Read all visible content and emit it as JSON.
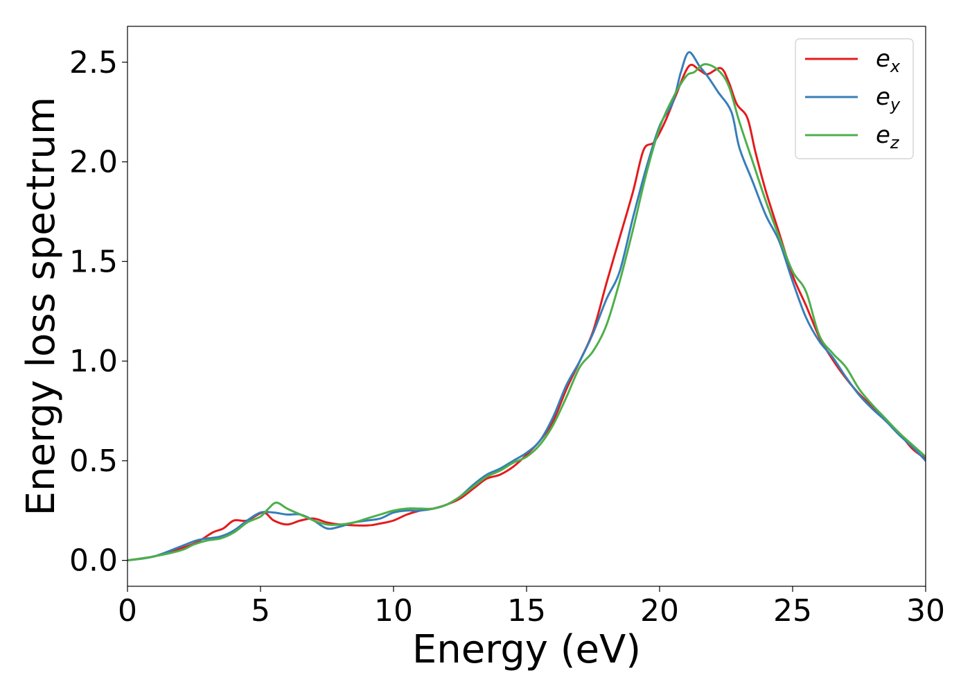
{
  "chart_data": {
    "type": "line",
    "xlabel": "Energy (eV)",
    "ylabel": "Energy loss spectrum",
    "xlim": [
      0,
      30
    ],
    "ylim": [
      -0.13,
      2.68
    ],
    "xticks": [
      "0",
      "5",
      "10",
      "15",
      "20",
      "25",
      "30"
    ],
    "yticks": [
      "0.0",
      "0.5",
      "1.0",
      "1.5",
      "2.0",
      "2.5"
    ],
    "grid": false,
    "legend_position": "top-right",
    "series": [
      {
        "name": "e_x",
        "legend_base": "e",
        "legend_sub": "x",
        "color": "#e41a1c",
        "points": [
          [
            0,
            0
          ],
          [
            1,
            0.02
          ],
          [
            2,
            0.06
          ],
          [
            2.6,
            0.09
          ],
          [
            3.2,
            0.14
          ],
          [
            3.6,
            0.16
          ],
          [
            4,
            0.2
          ],
          [
            4.5,
            0.2
          ],
          [
            5.1,
            0.24
          ],
          [
            5.5,
            0.2
          ],
          [
            6,
            0.18
          ],
          [
            6.5,
            0.2
          ],
          [
            7,
            0.21
          ],
          [
            7.5,
            0.19
          ],
          [
            8,
            0.18
          ],
          [
            9,
            0.175
          ],
          [
            9.5,
            0.185
          ],
          [
            10,
            0.2
          ],
          [
            10.5,
            0.23
          ],
          [
            11,
            0.25
          ],
          [
            11.5,
            0.26
          ],
          [
            12,
            0.28
          ],
          [
            12.5,
            0.31
          ],
          [
            13,
            0.36
          ],
          [
            13.5,
            0.41
          ],
          [
            14,
            0.43
          ],
          [
            14.5,
            0.47
          ],
          [
            15,
            0.53
          ],
          [
            15.5,
            0.6
          ],
          [
            16,
            0.7
          ],
          [
            16.5,
            0.86
          ],
          [
            17,
            1.0
          ],
          [
            17.5,
            1.15
          ],
          [
            18,
            1.39
          ],
          [
            18.5,
            1.62
          ],
          [
            19,
            1.85
          ],
          [
            19.4,
            2.06
          ],
          [
            19.8,
            2.1
          ],
          [
            20.2,
            2.2
          ],
          [
            20.6,
            2.33
          ],
          [
            21.1,
            2.48
          ],
          [
            21.5,
            2.46
          ],
          [
            21.8,
            2.44
          ],
          [
            22.3,
            2.47
          ],
          [
            22.6,
            2.4
          ],
          [
            22.9,
            2.29
          ],
          [
            23.3,
            2.22
          ],
          [
            23.6,
            2.05
          ],
          [
            24,
            1.85
          ],
          [
            24.5,
            1.64
          ],
          [
            25,
            1.43
          ],
          [
            25.5,
            1.28
          ],
          [
            26,
            1.12
          ],
          [
            26.3,
            1.05
          ],
          [
            26.8,
            0.95
          ],
          [
            27.4,
            0.85
          ],
          [
            28,
            0.77
          ],
          [
            28.5,
            0.7
          ],
          [
            29,
            0.64
          ],
          [
            29.5,
            0.56
          ],
          [
            30,
            0.51
          ]
        ]
      },
      {
        "name": "e_y",
        "legend_base": "e",
        "legend_sub": "y",
        "color": "#377eb8",
        "points": [
          [
            0,
            0
          ],
          [
            1,
            0.02
          ],
          [
            2,
            0.07
          ],
          [
            2.6,
            0.1
          ],
          [
            3,
            0.11
          ],
          [
            3.5,
            0.12
          ],
          [
            4,
            0.15
          ],
          [
            4.5,
            0.2
          ],
          [
            5,
            0.24
          ],
          [
            5.5,
            0.24
          ],
          [
            6,
            0.23
          ],
          [
            6.5,
            0.23
          ],
          [
            7,
            0.2
          ],
          [
            7.5,
            0.16
          ],
          [
            8,
            0.17
          ],
          [
            8.5,
            0.19
          ],
          [
            9,
            0.2
          ],
          [
            9.5,
            0.21
          ],
          [
            10,
            0.24
          ],
          [
            10.5,
            0.25
          ],
          [
            11,
            0.25
          ],
          [
            11.5,
            0.26
          ],
          [
            12,
            0.28
          ],
          [
            12.5,
            0.32
          ],
          [
            13,
            0.38
          ],
          [
            13.5,
            0.43
          ],
          [
            14,
            0.46
          ],
          [
            14.5,
            0.5
          ],
          [
            15,
            0.54
          ],
          [
            15.5,
            0.6
          ],
          [
            16,
            0.72
          ],
          [
            16.5,
            0.88
          ],
          [
            17,
            1.0
          ],
          [
            17.5,
            1.14
          ],
          [
            18,
            1.31
          ],
          [
            18.5,
            1.45
          ],
          [
            19,
            1.72
          ],
          [
            19.5,
            1.97
          ],
          [
            20,
            2.18
          ],
          [
            20.5,
            2.3
          ],
          [
            20.8,
            2.45
          ],
          [
            21.1,
            2.55
          ],
          [
            21.5,
            2.48
          ],
          [
            21.8,
            2.43
          ],
          [
            22.2,
            2.35
          ],
          [
            22.7,
            2.25
          ],
          [
            23,
            2.07
          ],
          [
            23.5,
            1.9
          ],
          [
            24,
            1.73
          ],
          [
            24.5,
            1.6
          ],
          [
            25,
            1.4
          ],
          [
            25.5,
            1.22
          ],
          [
            26,
            1.1
          ],
          [
            26.5,
            1.02
          ],
          [
            27,
            0.92
          ],
          [
            27.5,
            0.83
          ],
          [
            28,
            0.76
          ],
          [
            28.5,
            0.7
          ],
          [
            29,
            0.63
          ],
          [
            29.5,
            0.57
          ],
          [
            30,
            0.5
          ]
        ]
      },
      {
        "name": "e_z",
        "legend_base": "e",
        "legend_sub": "z",
        "color": "#4daf4a",
        "points": [
          [
            0,
            0
          ],
          [
            1,
            0.02
          ],
          [
            2,
            0.05
          ],
          [
            2.5,
            0.08
          ],
          [
            3,
            0.1
          ],
          [
            3.5,
            0.11
          ],
          [
            4,
            0.14
          ],
          [
            4.5,
            0.19
          ],
          [
            5,
            0.22
          ],
          [
            5.3,
            0.26
          ],
          [
            5.6,
            0.29
          ],
          [
            6,
            0.26
          ],
          [
            6.5,
            0.23
          ],
          [
            7,
            0.2
          ],
          [
            7.5,
            0.18
          ],
          [
            8,
            0.18
          ],
          [
            8.5,
            0.19
          ],
          [
            9,
            0.21
          ],
          [
            9.5,
            0.23
          ],
          [
            10,
            0.25
          ],
          [
            10.5,
            0.26
          ],
          [
            11,
            0.26
          ],
          [
            11.5,
            0.26
          ],
          [
            12,
            0.28
          ],
          [
            12.5,
            0.32
          ],
          [
            13,
            0.37
          ],
          [
            13.5,
            0.42
          ],
          [
            14,
            0.45
          ],
          [
            14.5,
            0.49
          ],
          [
            15,
            0.52
          ],
          [
            15.5,
            0.58
          ],
          [
            16,
            0.68
          ],
          [
            16.5,
            0.82
          ],
          [
            17,
            0.97
          ],
          [
            17.5,
            1.05
          ],
          [
            18,
            1.18
          ],
          [
            18.5,
            1.4
          ],
          [
            19,
            1.66
          ],
          [
            19.5,
            1.94
          ],
          [
            20,
            2.17
          ],
          [
            20.5,
            2.32
          ],
          [
            21,
            2.43
          ],
          [
            21.3,
            2.45
          ],
          [
            21.7,
            2.49
          ],
          [
            22.2,
            2.46
          ],
          [
            22.6,
            2.38
          ],
          [
            23,
            2.2
          ],
          [
            23.5,
            2.0
          ],
          [
            24,
            1.8
          ],
          [
            24.5,
            1.62
          ],
          [
            25,
            1.45
          ],
          [
            25.5,
            1.35
          ],
          [
            26,
            1.13
          ],
          [
            26.5,
            1.04
          ],
          [
            27,
            0.97
          ],
          [
            27.5,
            0.86
          ],
          [
            28,
            0.78
          ],
          [
            28.5,
            0.71
          ],
          [
            29,
            0.64
          ],
          [
            29.5,
            0.58
          ],
          [
            30,
            0.52
          ]
        ]
      }
    ]
  }
}
